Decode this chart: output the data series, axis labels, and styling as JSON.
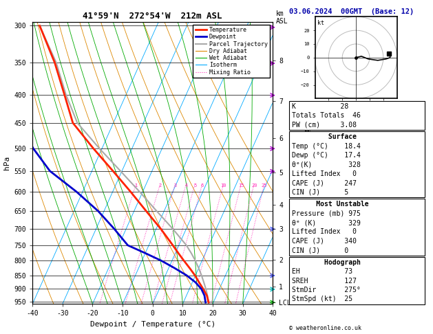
{
  "title_left": "41°59'N  272°54'W  212m ASL",
  "title_right": "03.06.2024  00GMT  (Base: 12)",
  "xlabel": "Dewpoint / Temperature (°C)",
  "ylabel_left": "hPa",
  "pressure_levels": [
    300,
    350,
    400,
    450,
    500,
    550,
    600,
    650,
    700,
    750,
    800,
    850,
    900,
    950
  ],
  "km_labels": [
    [
      "8",
      347
    ],
    [
      "7",
      411
    ],
    [
      "6",
      479
    ],
    [
      "5",
      553
    ],
    [
      "4",
      633
    ],
    [
      "3",
      701
    ],
    [
      "2",
      797
    ],
    [
      "1",
      892
    ],
    [
      "LCL",
      952
    ]
  ],
  "xlim": [
    -40,
    40
  ],
  "pmin": 295,
  "pmax": 958,
  "skew_factor": 42.0,
  "isotherm_temps": [
    -40,
    -30,
    -20,
    -10,
    0,
    10,
    20,
    30,
    40
  ],
  "dry_adiabat_base_temps": [
    -40,
    -30,
    -20,
    -10,
    0,
    10,
    20,
    30,
    40,
    50,
    60,
    70
  ],
  "wet_adiabat_base_temps": [
    -20,
    -15,
    -10,
    -5,
    0,
    5,
    10,
    15,
    20,
    25,
    30
  ],
  "mixing_ratios": [
    1,
    2,
    3,
    4,
    5,
    6,
    10,
    15,
    20,
    25
  ],
  "temp_profile": {
    "pressures": [
      952,
      925,
      900,
      875,
      850,
      825,
      800,
      775,
      750,
      700,
      650,
      600,
      550,
      500,
      450,
      400,
      350,
      300
    ],
    "temps": [
      18.4,
      16.8,
      14.6,
      12.2,
      9.8,
      7.0,
      4.0,
      1.0,
      -2.0,
      -8.5,
      -16.0,
      -24.0,
      -33.0,
      -43.0,
      -53.5,
      -60.5,
      -68.5,
      -79.0
    ]
  },
  "dewp_profile": {
    "pressures": [
      952,
      925,
      900,
      875,
      850,
      825,
      800,
      775,
      750,
      700,
      650,
      600,
      550,
      500,
      450,
      400,
      350,
      300
    ],
    "temps": [
      17.4,
      16.0,
      14.0,
      11.0,
      7.0,
      2.0,
      -3.5,
      -10.0,
      -17.0,
      -24.0,
      -32.0,
      -42.0,
      -54.0,
      -63.0,
      -71.0,
      -77.0,
      -81.0,
      -85.0
    ]
  },
  "parcel_profile": {
    "pressures": [
      952,
      925,
      900,
      875,
      850,
      825,
      800,
      775,
      750,
      700,
      650,
      600,
      550,
      500,
      450,
      400,
      350,
      300
    ],
    "temps": [
      18.4,
      17.0,
      15.5,
      13.8,
      12.0,
      10.0,
      7.8,
      5.3,
      2.5,
      -4.5,
      -12.5,
      -21.0,
      -30.5,
      -41.0,
      -52.0,
      -60.0,
      -68.0,
      -79.0
    ]
  },
  "colors": {
    "temperature": "#FF2200",
    "dewpoint": "#0000CC",
    "parcel": "#AAAAAA",
    "dry_adiabat": "#DD8800",
    "wet_adiabat": "#00AA00",
    "isotherm": "#00AAFF",
    "mixing_ratio": "#FF33BB"
  },
  "legend_items": [
    [
      "Temperature",
      "#FF2200",
      "solid",
      2.0
    ],
    [
      "Dewpoint",
      "#0000CC",
      "solid",
      2.0
    ],
    [
      "Parcel Trajectory",
      "#AAAAAA",
      "solid",
      1.5
    ],
    [
      "Dry Adiabat",
      "#DD8800",
      "solid",
      0.8
    ],
    [
      "Wet Adiabat",
      "#00AA00",
      "solid",
      0.8
    ],
    [
      "Isotherm",
      "#00AAFF",
      "solid",
      0.8
    ],
    [
      "Mixing Ratio",
      "#FF33BB",
      "dotted",
      0.8
    ]
  ],
  "wind_barbs": [
    [
      302,
      "#AA00CC"
    ],
    [
      351,
      "#AA00CC"
    ],
    [
      401,
      "#AA00CC"
    ],
    [
      501,
      "#AA00CC"
    ],
    [
      551,
      "#AA00CC"
    ],
    [
      701,
      "#4455FF"
    ],
    [
      851,
      "#4455FF"
    ],
    [
      901,
      "#00BBBB"
    ],
    [
      952,
      "#00BB00"
    ]
  ],
  "stats": {
    "K": 28,
    "Totals_Totals": 46,
    "PW_cm": "3.08",
    "surface_temp": "18.4",
    "surface_dewp": "17.4",
    "theta_e_K": 328,
    "lifted_index": 0,
    "CAPE_J": 247,
    "CIN_J": 5,
    "MU_pressure_mb": 975,
    "MU_theta_e_K": 329,
    "MU_lifted_index": 0,
    "MU_CAPE_J": 340,
    "MU_CIN_J": 0,
    "EH": 73,
    "SREH": 127,
    "StmDir": "275°",
    "StmSpd_kt": 25
  },
  "hodograph_u": [
    0,
    4,
    9,
    16,
    22,
    25,
    25,
    24
  ],
  "hodograph_v": [
    0,
    1,
    -1,
    -2,
    -1,
    0,
    2,
    3
  ],
  "copyright": "© weatheronline.co.uk"
}
